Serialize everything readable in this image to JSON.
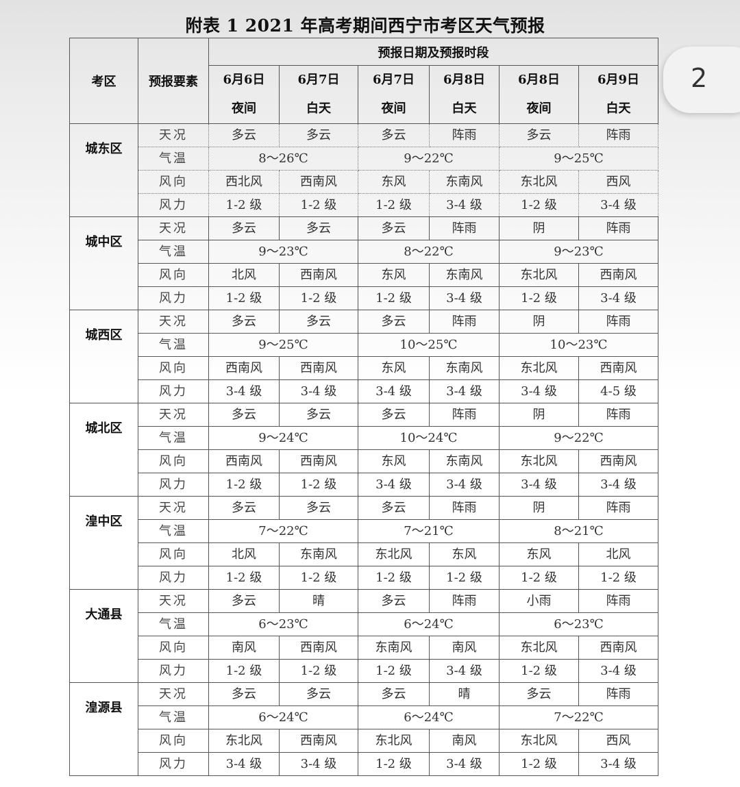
{
  "title": "附表 1 2021 年高考期间西宁市考区天气预报",
  "page_badge": "2",
  "header": {
    "district_label": "考区",
    "element_label": "预报要素",
    "period_group_label": "预报日期及预报时段",
    "periods": [
      {
        "date": "6月6日",
        "time": "夜间"
      },
      {
        "date": "6月7日",
        "time": "白天"
      },
      {
        "date": "6月7日",
        "time": "夜间"
      },
      {
        "date": "6月8日",
        "time": "白天"
      },
      {
        "date": "6月8日",
        "time": "夜间"
      },
      {
        "date": "6月9日",
        "time": "白天"
      }
    ]
  },
  "element_labels": {
    "weather": "天况",
    "temp": "气温",
    "wind_dir": "风向",
    "wind_force": "风力"
  },
  "districts": [
    {
      "name": "城东区",
      "weather": [
        "多云",
        "多云",
        "多云",
        "阵雨",
        "多云",
        "阵雨"
      ],
      "temp": [
        "8～26℃",
        "9～22℃",
        "9～25℃"
      ],
      "wind_dir": [
        "西北风",
        "西南风",
        "东风",
        "东南风",
        "东北风",
        "西风"
      ],
      "wind_force": [
        "1-2 级",
        "1-2 级",
        "1-2 级",
        "3-4 级",
        "1-2 级",
        "3-4 级"
      ]
    },
    {
      "name": "城中区",
      "weather": [
        "多云",
        "多云",
        "多云",
        "阵雨",
        "阴",
        "阵雨"
      ],
      "temp": [
        "9～23℃",
        "8～22℃",
        "9～23℃"
      ],
      "wind_dir": [
        "北风",
        "西南风",
        "东风",
        "东南风",
        "东北风",
        "西南风"
      ],
      "wind_force": [
        "1-2 级",
        "1-2 级",
        "1-2 级",
        "3-4 级",
        "1-2 级",
        "3-4 级"
      ]
    },
    {
      "name": "城西区",
      "weather": [
        "多云",
        "多云",
        "多云",
        "阵雨",
        "阴",
        "阵雨"
      ],
      "temp": [
        "9～25℃",
        "10～25℃",
        "10～23℃"
      ],
      "wind_dir": [
        "西南风",
        "西南风",
        "东风",
        "东南风",
        "东北风",
        "西南风"
      ],
      "wind_force": [
        "3-4 级",
        "3-4 级",
        "3-4 级",
        "3-4 级",
        "3-4 级",
        "4-5 级"
      ]
    },
    {
      "name": "城北区",
      "weather": [
        "多云",
        "多云",
        "多云",
        "阵雨",
        "阴",
        "阵雨"
      ],
      "temp": [
        "9～24℃",
        "10～24℃",
        "9～22℃"
      ],
      "wind_dir": [
        "西南风",
        "西南风",
        "东风",
        "东南风",
        "东北风",
        "西南风"
      ],
      "wind_force": [
        "1-2 级",
        "1-2 级",
        "3-4 级",
        "3-4 级",
        "3-4 级",
        "3-4 级"
      ]
    },
    {
      "name": "湟中区",
      "weather": [
        "多云",
        "多云",
        "多云",
        "阵雨",
        "阴",
        "阵雨"
      ],
      "temp": [
        "7～22℃",
        "7～21℃",
        "8～21℃"
      ],
      "wind_dir": [
        "北风",
        "东南风",
        "东北风",
        "东风",
        "东风",
        "北风"
      ],
      "wind_force": [
        "1-2 级",
        "1-2 级",
        "1-2 级",
        "1-2 级",
        "1-2 级",
        "1-2 级"
      ]
    },
    {
      "name": "大通县",
      "weather": [
        "多云",
        "晴",
        "多云",
        "阵雨",
        "小雨",
        "阵雨"
      ],
      "temp": [
        "6～23℃",
        "6～24℃",
        "6～23℃"
      ],
      "wind_dir": [
        "南风",
        "西南风",
        "东南风",
        "南风",
        "东北风",
        "西南风"
      ],
      "wind_force": [
        "1-2 级",
        "1-2 级",
        "1-2 级",
        "3-4 级",
        "1-2 级",
        "3-4 级"
      ]
    },
    {
      "name": "湟源县",
      "weather": [
        "多云",
        "多云",
        "多云",
        "晴",
        "多云",
        "阵雨"
      ],
      "temp": [
        "6～24℃",
        "6～24℃",
        "7～22℃"
      ],
      "wind_dir": [
        "东北风",
        "西南风",
        "东北风",
        "南风",
        "东北风",
        "西风"
      ],
      "wind_force": [
        "3-4 级",
        "3-4 级",
        "1-2 级",
        "3-4 级",
        "1-2 级",
        "3-4 级"
      ]
    }
  ]
}
